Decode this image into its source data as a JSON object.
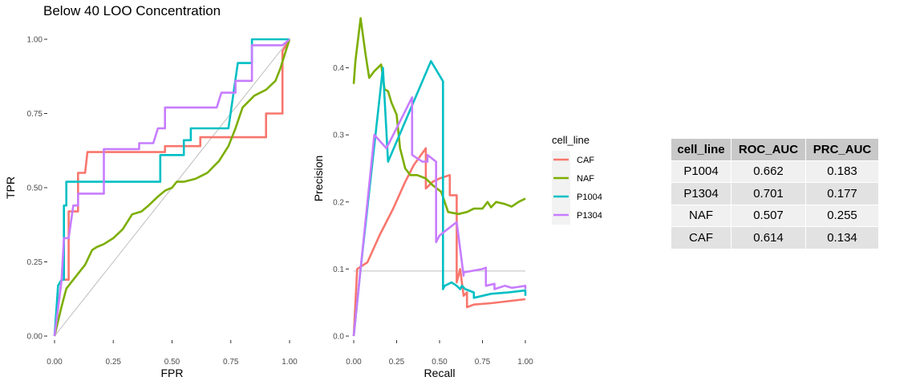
{
  "title": "Below 40 LOO Concentration",
  "colors": {
    "CAF": "#F8766D",
    "NAF": "#7CAE00",
    "P1004": "#00BFC4",
    "P1304": "#C77CFF",
    "reference": "#bdbdbd"
  },
  "legend": {
    "title": "cell_line",
    "entries": [
      "CAF",
      "NAF",
      "P1004",
      "P1304"
    ]
  },
  "chart_data": [
    {
      "type": "line",
      "xlabel": "FPR",
      "ylabel": "TPR",
      "xlim": [
        0,
        1
      ],
      "ylim": [
        0,
        1
      ],
      "xticks": [
        "0.00",
        "0.25",
        "0.50",
        "0.75",
        "1.00"
      ],
      "yticks": [
        "0.00",
        "0.25",
        "0.50",
        "0.75",
        "1.00"
      ],
      "grid": false,
      "reference_line": {
        "x": [
          0,
          1
        ],
        "y": [
          0,
          1
        ]
      },
      "series": [
        {
          "name": "CAF",
          "x": [
            0,
            0.03,
            0.06,
            0.06,
            0.1,
            0.1,
            0.13,
            0.14,
            0.47,
            0.47,
            0.62,
            0.62,
            0.9,
            0.9,
            0.97,
            0.97,
            1.0
          ],
          "y": [
            0,
            0.19,
            0.19,
            0.42,
            0.42,
            0.55,
            0.55,
            0.62,
            0.62,
            0.64,
            0.64,
            0.67,
            0.67,
            0.75,
            0.75,
            0.96,
            1.0
          ]
        },
        {
          "name": "NAF",
          "x": [
            0,
            0.03,
            0.05,
            0.08,
            0.11,
            0.13,
            0.16,
            0.18,
            0.21,
            0.25,
            0.29,
            0.33,
            0.37,
            0.4,
            0.44,
            0.47,
            0.5,
            0.52,
            0.55,
            0.6,
            0.65,
            0.7,
            0.74,
            0.77,
            0.8,
            0.85,
            0.9,
            0.94,
            0.96,
            0.98,
            1.0
          ],
          "y": [
            0,
            0.1,
            0.16,
            0.19,
            0.22,
            0.24,
            0.29,
            0.3,
            0.31,
            0.33,
            0.36,
            0.41,
            0.42,
            0.44,
            0.47,
            0.49,
            0.5,
            0.52,
            0.52,
            0.53,
            0.55,
            0.59,
            0.64,
            0.7,
            0.77,
            0.81,
            0.83,
            0.86,
            0.9,
            0.95,
            1.0
          ]
        },
        {
          "name": "P1004",
          "x": [
            0,
            0.015,
            0.03,
            0.04,
            0.04,
            0.05,
            0.05,
            0.45,
            0.45,
            0.55,
            0.55,
            0.58,
            0.58,
            0.74,
            0.78,
            0.78,
            0.84,
            0.84,
            1.0
          ],
          "y": [
            0,
            0.17,
            0.19,
            0.19,
            0.44,
            0.44,
            0.52,
            0.52,
            0.61,
            0.61,
            0.66,
            0.66,
            0.7,
            0.7,
            0.92,
            0.92,
            0.92,
            1.0,
            1.0
          ]
        },
        {
          "name": "P1304",
          "x": [
            0,
            0.03,
            0.04,
            0.06,
            0.08,
            0.1,
            0.1,
            0.21,
            0.21,
            0.36,
            0.36,
            0.42,
            0.44,
            0.47,
            0.47,
            0.69,
            0.71,
            0.77,
            0.77,
            0.84,
            0.84,
            0.97,
            1.0
          ],
          "y": [
            0,
            0.19,
            0.33,
            0.33,
            0.44,
            0.44,
            0.48,
            0.48,
            0.63,
            0.63,
            0.65,
            0.65,
            0.7,
            0.7,
            0.77,
            0.77,
            0.82,
            0.82,
            0.86,
            0.86,
            0.98,
            0.98,
            1.0
          ]
        }
      ]
    },
    {
      "type": "line",
      "xlabel": "Recall",
      "ylabel": "Precision",
      "xlim": [
        0,
        1
      ],
      "ylim": [
        0,
        0.47
      ],
      "xticks": [
        "0.00",
        "0.25",
        "0.50",
        "0.75",
        "1.00"
      ],
      "yticks": [
        "0.0",
        "0.1",
        "0.2",
        "0.3",
        "0.4"
      ],
      "yticks_values": [
        0,
        0.1,
        0.2,
        0.3,
        0.4
      ],
      "grid": false,
      "baseline": 0.097,
      "series": [
        {
          "name": "CAF",
          "x": [
            0,
            0.02,
            0.08,
            0.15,
            0.23,
            0.3,
            0.35,
            0.42,
            0.42,
            0.46,
            0.5,
            0.56,
            0.56,
            0.6,
            0.6,
            0.62,
            0.64,
            0.66,
            0.66,
            0.7,
            0.8,
            0.9,
            1.0
          ],
          "y": [
            0,
            0.1,
            0.11,
            0.15,
            0.19,
            0.23,
            0.255,
            0.28,
            0.22,
            0.23,
            0.235,
            0.24,
            0.21,
            0.21,
            0.08,
            0.1,
            0.06,
            0.065,
            0.043,
            0.047,
            0.049,
            0.052,
            0.055
          ]
        },
        {
          "name": "NAF",
          "x": [
            0,
            0.01,
            0.04,
            0.07,
            0.09,
            0.12,
            0.16,
            0.18,
            0.2,
            0.22,
            0.25,
            0.27,
            0.3,
            0.33,
            0.37,
            0.42,
            0.46,
            0.51,
            0.55,
            0.61,
            0.66,
            0.7,
            0.75,
            0.78,
            0.8,
            0.83,
            0.88,
            0.92,
            0.96,
            1.0
          ],
          "y": [
            0.376,
            0.41,
            0.474,
            0.418,
            0.385,
            0.395,
            0.405,
            0.368,
            0.365,
            0.348,
            0.33,
            0.28,
            0.25,
            0.24,
            0.24,
            0.235,
            0.225,
            0.215,
            0.185,
            0.182,
            0.185,
            0.19,
            0.19,
            0.2,
            0.192,
            0.2,
            0.197,
            0.193,
            0.2,
            0.205
          ]
        },
        {
          "name": "P1004",
          "x": [
            0,
            0.04,
            0.17,
            0.2,
            0.45,
            0.52,
            0.52,
            0.53,
            0.57,
            0.6,
            0.62,
            0.63,
            0.65,
            0.7,
            0.7,
            0.75,
            0.8,
            0.9,
            1.0,
            1.0
          ],
          "y": [
            0,
            0.1,
            0.4,
            0.26,
            0.41,
            0.38,
            0.07,
            0.075,
            0.08,
            0.075,
            0.07,
            0.075,
            0.07,
            0.065,
            0.057,
            0.06,
            0.063,
            0.065,
            0.068,
            0.06
          ]
        },
        {
          "name": "P1304",
          "x": [
            0,
            0.12,
            0.19,
            0.25,
            0.34,
            0.34,
            0.4,
            0.43,
            0.43,
            0.48,
            0.48,
            0.5,
            0.5,
            0.55,
            0.6,
            0.6,
            0.64,
            0.64,
            0.75,
            0.77,
            0.77,
            0.82,
            0.82,
            0.88,
            0.92,
            0.95,
            1.0,
            1.0
          ],
          "y": [
            0,
            0.3,
            0.28,
            0.31,
            0.356,
            0.27,
            0.26,
            0.26,
            0.27,
            0.26,
            0.14,
            0.15,
            0.15,
            0.16,
            0.17,
            0.17,
            0.09,
            0.095,
            0.1,
            0.102,
            0.075,
            0.078,
            0.07,
            0.075,
            0.072,
            0.073,
            0.075,
            0.07
          ]
        }
      ]
    }
  ],
  "table": {
    "headers": [
      "cell_line",
      "ROC_AUC",
      "PRC_AUC"
    ],
    "rows": [
      [
        "P1004",
        "0.662",
        "0.183"
      ],
      [
        "P1304",
        "0.701",
        "0.177"
      ],
      [
        "NAF",
        "0.507",
        "0.255"
      ],
      [
        "CAF",
        "0.614",
        "0.134"
      ]
    ]
  }
}
